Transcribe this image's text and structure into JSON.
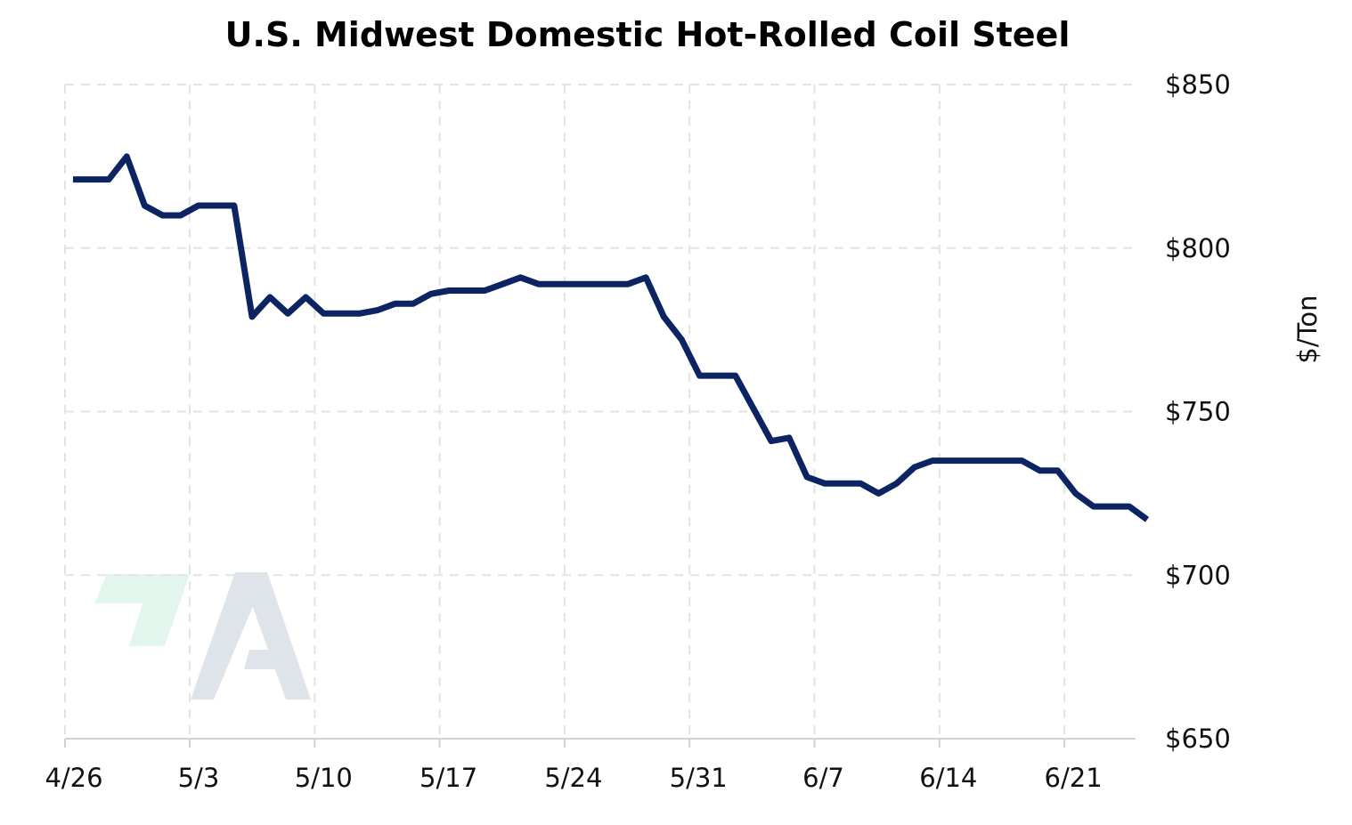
{
  "chart_data": {
    "type": "line",
    "title": "U.S. Midwest Domestic Hot-Rolled Coil Steel",
    "xlabel": "",
    "ylabel": "$/Ton",
    "ylim": [
      650,
      850
    ],
    "y_ticks": [
      850,
      800,
      750,
      700,
      650
    ],
    "y_tick_labels": [
      "$850",
      "$800",
      "$750",
      "$700",
      "$650"
    ],
    "y_axis_side": "right",
    "x_tick_labels": [
      "4/26",
      "5/3",
      "5/10",
      "5/17",
      "5/24",
      "5/31",
      "6/7",
      "6/14",
      "6/21"
    ],
    "grid": true,
    "line_color": "#0d2463",
    "series": [
      {
        "x": [
          "4/26",
          "4/27",
          "4/28",
          "4/29",
          "4/30",
          "5/1",
          "5/2",
          "5/3",
          "5/4",
          "5/5",
          "5/6",
          "5/7",
          "5/8",
          "5/9",
          "5/10",
          "5/11",
          "5/12",
          "5/13",
          "5/14",
          "5/15",
          "5/16",
          "5/17",
          "5/18",
          "5/19",
          "5/20",
          "5/21",
          "5/22",
          "5/23",
          "5/24",
          "5/25",
          "5/26",
          "5/27",
          "5/28",
          "5/29",
          "5/30",
          "5/31",
          "6/1",
          "6/2",
          "6/3",
          "6/4",
          "6/5",
          "6/6",
          "6/7",
          "6/8",
          "6/9",
          "6/10",
          "6/11",
          "6/12",
          "6/13",
          "6/14",
          "6/15",
          "6/16",
          "6/17",
          "6/18",
          "6/19",
          "6/20",
          "6/21",
          "6/22",
          "6/23",
          "6/24"
        ],
        "values": [
          821,
          821,
          821,
          828,
          813,
          810,
          810,
          813,
          813,
          813,
          779,
          785,
          780,
          785,
          780,
          780,
          780,
          781,
          783,
          783,
          786,
          787,
          787,
          787,
          789,
          791,
          789,
          789,
          789,
          789,
          789,
          789,
          791,
          779,
          772,
          761,
          761,
          761,
          751,
          741,
          742,
          730,
          728,
          728,
          728,
          725,
          728,
          733,
          735,
          735,
          735,
          735,
          735,
          735,
          732,
          732,
          725,
          721,
          721,
          721
        ]
      }
    ],
    "annotations": {
      "last_point": {
        "x": "6/25",
        "y": 717
      }
    }
  },
  "watermark": {
    "description": "logo",
    "colors": {
      "mark_green": "#e3f6ee",
      "mark_gray": "#dfe3ea"
    }
  }
}
